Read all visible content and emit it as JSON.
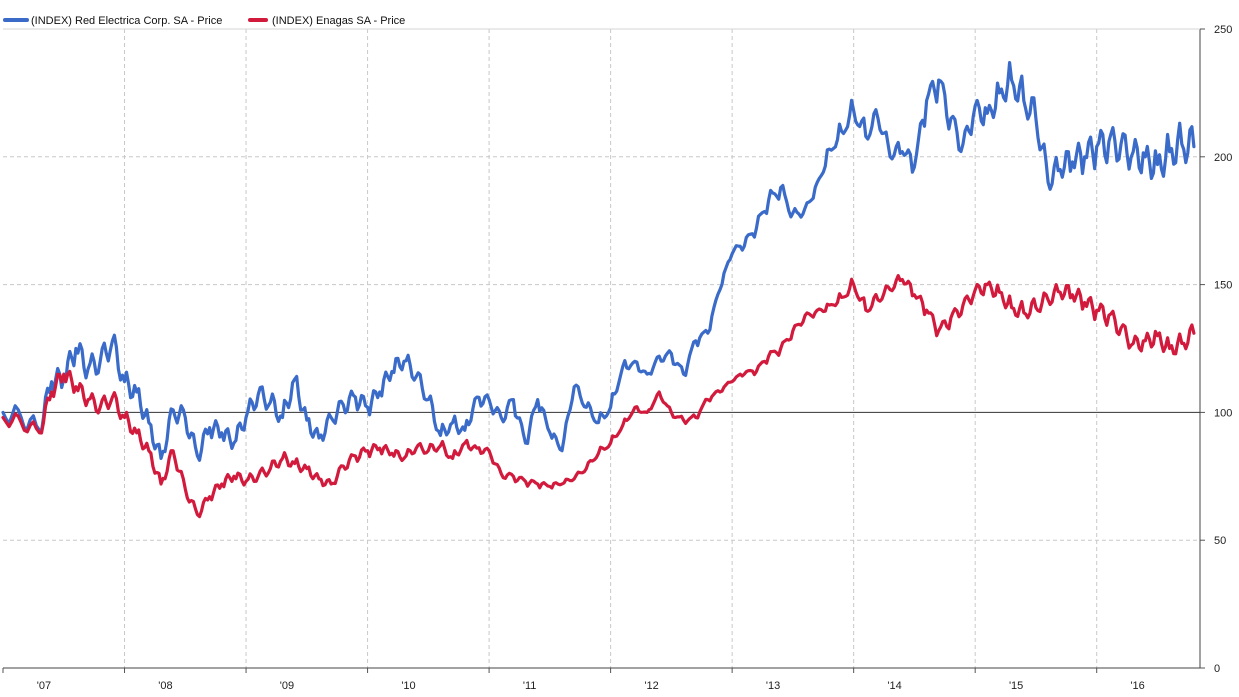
{
  "chart_data": {
    "type": "line",
    "title": "",
    "xlabel": "",
    "ylabel": "",
    "ylim": [
      0,
      250
    ],
    "y_ticks": [
      0,
      50,
      100,
      150,
      200,
      250
    ],
    "y_tick_labels": [
      "0",
      "50",
      "100",
      "150",
      "200",
      "250"
    ],
    "x_range": [
      2007.0,
      2016.85
    ],
    "x_tick_labels": [
      "'07",
      "'08",
      "'09",
      "'10",
      "'11",
      "'12",
      "'13",
      "'14",
      "'15",
      "'16"
    ],
    "x_tick_years": [
      2007,
      2008,
      2009,
      2010,
      2011,
      2012,
      2013,
      2014,
      2015,
      2016
    ],
    "reference_line": 100,
    "legend_position": "top-left",
    "series": [
      {
        "name": "(INDEX) Red Electrica Corp. SA - Price",
        "color": "#3a6bc9",
        "x": [
          2007.0,
          2007.15,
          2007.3,
          2007.4,
          2007.5,
          2007.6,
          2007.7,
          2007.8,
          2007.9,
          2008.0,
          2008.1,
          2008.2,
          2008.3,
          2008.4,
          2008.5,
          2008.6,
          2008.7,
          2008.8,
          2008.9,
          2009.0,
          2009.1,
          2009.2,
          2009.3,
          2009.4,
          2009.5,
          2009.6,
          2009.7,
          2009.8,
          2009.9,
          2010.0,
          2010.1,
          2010.2,
          2010.3,
          2010.4,
          2010.5,
          2010.6,
          2010.7,
          2010.8,
          2010.9,
          2011.0,
          2011.1,
          2011.2,
          2011.3,
          2011.4,
          2011.5,
          2011.6,
          2011.7,
          2011.8,
          2011.9,
          2012.0,
          2012.1,
          2012.2,
          2012.3,
          2012.4,
          2012.5,
          2012.6,
          2012.7,
          2012.8,
          2012.9,
          2013.0,
          2013.1,
          2013.2,
          2013.3,
          2013.4,
          2013.5,
          2013.6,
          2013.7,
          2013.8,
          2013.9,
          2014.0,
          2014.1,
          2014.2,
          2014.3,
          2014.4,
          2014.5,
          2014.6,
          2014.7,
          2014.8,
          2014.9,
          2015.0,
          2015.1,
          2015.2,
          2015.3,
          2015.4,
          2015.5,
          2015.6,
          2015.7,
          2015.8,
          2015.9,
          2016.0,
          2016.1,
          2016.2,
          2016.3,
          2016.4,
          2016.5,
          2016.6,
          2016.7,
          2016.8
        ],
        "values": [
          100,
          98,
          93,
          112,
          113,
          125,
          117,
          120,
          128,
          112,
          108,
          96,
          82,
          101,
          98,
          83,
          94,
          92,
          88,
          98,
          107,
          104,
          98,
          113,
          97,
          90,
          98,
          103,
          106,
          102,
          108,
          116,
          120,
          114,
          105,
          91,
          96,
          93,
          106,
          105,
          98,
          105,
          88,
          105,
          92,
          85,
          110,
          102,
          96,
          102,
          118,
          120,
          115,
          122,
          123,
          115,
          128,
          131,
          148,
          162,
          165,
          172,
          183,
          188,
          178,
          180,
          190,
          203,
          210,
          218,
          208,
          215,
          200,
          202,
          196,
          222,
          230,
          215,
          205,
          220,
          217,
          225,
          230,
          222,
          215,
          190,
          195,
          198,
          200,
          204,
          206,
          205,
          202,
          200,
          197,
          202,
          205,
          204
        ]
      },
      {
        "name": "(INDEX) Enagas SA - Price",
        "color": "#d21a3d",
        "x": [
          2007.0,
          2007.15,
          2007.3,
          2007.4,
          2007.5,
          2007.6,
          2007.7,
          2007.8,
          2007.9,
          2008.0,
          2008.1,
          2008.2,
          2008.3,
          2008.4,
          2008.5,
          2008.6,
          2008.7,
          2008.8,
          2008.9,
          2009.0,
          2009.1,
          2009.2,
          2009.3,
          2009.4,
          2009.5,
          2009.6,
          2009.7,
          2009.8,
          2009.9,
          2010.0,
          2010.1,
          2010.2,
          2010.3,
          2010.4,
          2010.5,
          2010.6,
          2010.7,
          2010.8,
          2010.9,
          2011.0,
          2011.1,
          2011.2,
          2011.3,
          2011.4,
          2011.5,
          2011.6,
          2011.7,
          2011.8,
          2011.9,
          2012.0,
          2012.1,
          2012.2,
          2012.3,
          2012.4,
          2012.5,
          2012.6,
          2012.7,
          2012.8,
          2012.9,
          2013.0,
          2013.1,
          2013.2,
          2013.3,
          2013.4,
          2013.5,
          2013.6,
          2013.7,
          2013.8,
          2013.9,
          2014.0,
          2014.1,
          2014.2,
          2014.3,
          2014.4,
          2014.5,
          2014.6,
          2014.7,
          2014.8,
          2014.9,
          2015.0,
          2015.1,
          2015.2,
          2015.3,
          2015.4,
          2015.5,
          2015.6,
          2015.7,
          2015.8,
          2015.9,
          2016.0,
          2016.1,
          2016.2,
          2016.3,
          2016.4,
          2016.5,
          2016.6,
          2016.7,
          2016.8
        ],
        "values": [
          98,
          96,
          92,
          108,
          115,
          110,
          105,
          102,
          106,
          98,
          92,
          85,
          72,
          85,
          70,
          60,
          67,
          72,
          75,
          73,
          75,
          78,
          82,
          80,
          78,
          74,
          72,
          79,
          83,
          85,
          86,
          84,
          82,
          86,
          85,
          87,
          82,
          88,
          86,
          85,
          76,
          75,
          73,
          72,
          71,
          72,
          74,
          78,
          84,
          88,
          95,
          102,
          100,
          108,
          100,
          97,
          98,
          105,
          108,
          112,
          115,
          116,
          122,
          125,
          132,
          138,
          140,
          142,
          145,
          150,
          140,
          144,
          148,
          152,
          146,
          140,
          132,
          137,
          142,
          148,
          150,
          147,
          141,
          139,
          141,
          144,
          147,
          146,
          143,
          140,
          138,
          133,
          127,
          128,
          130,
          125,
          127,
          131
        ]
      }
    ]
  }
}
